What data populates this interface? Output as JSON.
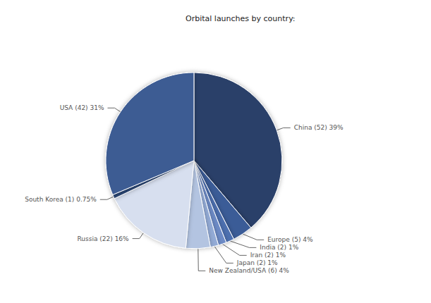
{
  "chart_data": {
    "type": "pie",
    "title": "Orbital launches by country:",
    "categories": [
      "China (52) 39%",
      "Europe (5) 4%",
      "India (2) 1%",
      "Iran (2) 1%",
      "Japan (2) 1%",
      "New Zealand/USA (6) 4%",
      "Russia (22) 16%",
      "South Korea (1) 0.75%",
      "USA (42) 31%"
    ],
    "values": [
      52,
      5,
      2,
      2,
      2,
      6,
      22,
      1,
      42
    ],
    "colors": [
      "#2c4169",
      "#3b5b97",
      "#4e6fb0",
      "#6d8bc6",
      "#93abd6",
      "#b3c4e1",
      "#d7dfef",
      "#2c4471",
      "#3d5b93"
    ]
  }
}
